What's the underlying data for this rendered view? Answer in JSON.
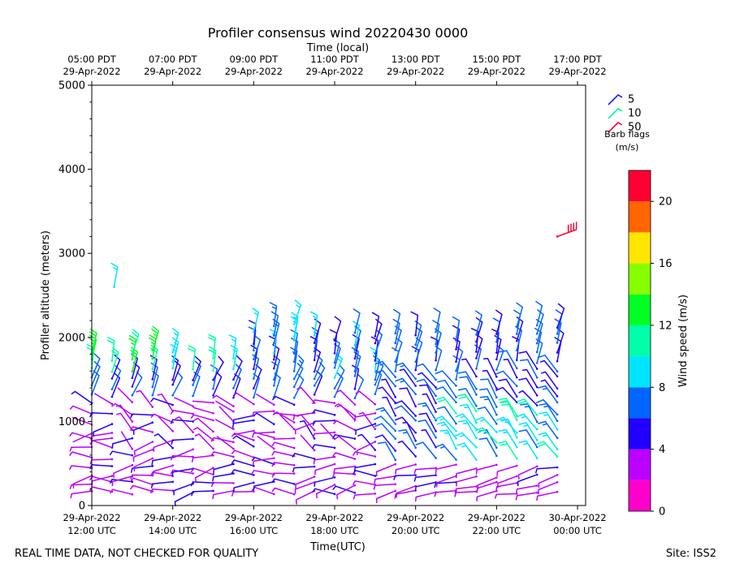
{
  "chart_data": {
    "type": "wind-barb",
    "title": "Profiler consensus wind 20220430 0000",
    "xlabel": "Time(UTC)",
    "ylabel": "Profiler altitude (meters)",
    "top_axis_label": "Time (local)",
    "ylim": [
      0,
      5000
    ],
    "y_ticks": [
      0,
      1000,
      2000,
      3000,
      4000,
      5000
    ],
    "x_range_hours_utc": [
      12.0,
      24.2
    ],
    "x_ticks_utc": [
      {
        "hour": 12,
        "line1": "29-Apr-2022",
        "line2": "12:00 UTC"
      },
      {
        "hour": 14,
        "line1": "29-Apr-2022",
        "line2": "14:00 UTC"
      },
      {
        "hour": 16,
        "line1": "29-Apr-2022",
        "line2": "16:00 UTC"
      },
      {
        "hour": 18,
        "line1": "29-Apr-2022",
        "line2": "18:00 UTC"
      },
      {
        "hour": 20,
        "line1": "29-Apr-2022",
        "line2": "20:00 UTC"
      },
      {
        "hour": 22,
        "line1": "29-Apr-2022",
        "line2": "22:00 UTC"
      },
      {
        "hour": 24,
        "line1": "30-Apr-2022",
        "line2": "00:00 UTC"
      }
    ],
    "x_ticks_local": [
      {
        "hour": 12,
        "line1": "05:00 PDT",
        "line2": "29-Apr-2022"
      },
      {
        "hour": 14,
        "line1": "07:00 PDT",
        "line2": "29-Apr-2022"
      },
      {
        "hour": 16,
        "line1": "09:00 PDT",
        "line2": "29-Apr-2022"
      },
      {
        "hour": 18,
        "line1": "11:00 PDT",
        "line2": "29-Apr-2022"
      },
      {
        "hour": 20,
        "line1": "13:00 PDT",
        "line2": "29-Apr-2022"
      },
      {
        "hour": 22,
        "line1": "15:00 PDT",
        "line2": "29-Apr-2022"
      },
      {
        "hour": 24,
        "line1": "17:00 PDT",
        "line2": "29-Apr-2022"
      }
    ],
    "legend": {
      "title_line1": "Barb flags",
      "title_line2": "(m/s)",
      "entries": [
        {
          "label": "5",
          "color": "#1a1aff"
        },
        {
          "label": "10",
          "color": "#00ff99"
        },
        {
          "label": "50",
          "color": "#ff0033"
        }
      ]
    },
    "colorbar": {
      "label": "Wind speed (m/s)",
      "vmin": 0,
      "vmax": 22,
      "ticks": [
        0,
        4,
        8,
        12,
        16,
        20
      ],
      "colors": [
        "#ff00cc",
        "#bb00ff",
        "#2200ff",
        "#0066ff",
        "#00e5ff",
        "#00ffaa",
        "#00ff22",
        "#88ff00",
        "#ffe600",
        "#ff6600",
        "#ff0033"
      ]
    },
    "profiles_utc_hours": [
      12.0,
      12.5,
      13.0,
      13.5,
      14.0,
      14.5,
      15.0,
      15.5,
      16.0,
      16.5,
      17.0,
      17.5,
      18.0,
      18.5,
      19.0,
      19.5,
      20.0,
      20.5,
      21.0,
      21.5,
      22.0,
      22.5,
      23.0,
      23.5
    ],
    "typical_top_altitude_m": [
      1850,
      1820,
      1880,
      1880,
      1900,
      1680,
      1750,
      1780,
      2080,
      2150,
      2200,
      2130,
      1980,
      2130,
      2050,
      2050,
      2040,
      2050,
      1980,
      2050,
      2040,
      2200,
      2230,
      2230
    ],
    "isolated_barbs": [
      {
        "hour": 12.55,
        "alt": 2600,
        "speed": 9
      },
      {
        "hour": 23.5,
        "alt": 3200,
        "speed": 21
      }
    ]
  },
  "footer": {
    "left": "REAL TIME DATA, NOT CHECKED FOR QUALITY",
    "right": "Site: ISS2"
  }
}
